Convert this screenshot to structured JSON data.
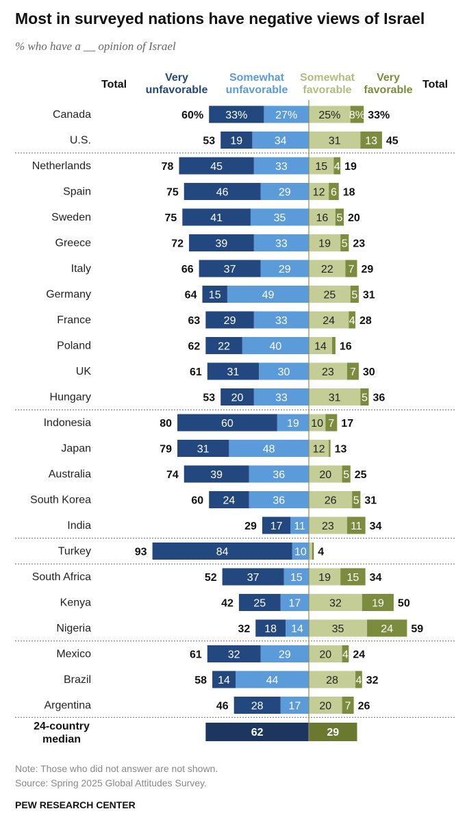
{
  "title": "Most in surveyed nations have negative views of Israel",
  "subtitle": "% who have a __ opinion of Israel",
  "headers": {
    "total_left": "Total",
    "very_unfav": [
      "Very",
      "unfavorable"
    ],
    "somewhat_unfav": [
      "Somewhat",
      "unfavorable"
    ],
    "somewhat_fav": [
      "Somewhat",
      "favorable"
    ],
    "very_fav": [
      "Very",
      "favorable"
    ],
    "total_right": "Total"
  },
  "colors": {
    "very_unfavorable": "#23487f",
    "somewhat_unfavorable": "#5b9bd9",
    "somewhat_favorable": "#c5cd96",
    "very_favorable": "#7b8c3e",
    "median_unfavorable": "#1c3660",
    "median_favorable": "#6a7830",
    "center_line": "#8a8a5a",
    "separator": "#666666"
  },
  "chart_data": {
    "type": "bar",
    "stacked": "diverging",
    "series_names": [
      "Very unfavorable",
      "Somewhat unfavorable",
      "Somewhat favorable",
      "Very favorable"
    ],
    "rows": [
      {
        "country": "Canada",
        "very_unfav": 33,
        "somewhat_unfav": 27,
        "somewhat_fav": 25,
        "very_fav": 8,
        "total_unfav": 60,
        "total_fav": 33,
        "pct": true,
        "group": 1
      },
      {
        "country": "U.S.",
        "very_unfav": 19,
        "somewhat_unfav": 34,
        "somewhat_fav": 31,
        "very_fav": 13,
        "total_unfav": 53,
        "total_fav": 45,
        "group": 1
      },
      {
        "country": "Netherlands",
        "very_unfav": 45,
        "somewhat_unfav": 33,
        "somewhat_fav": 15,
        "very_fav": 4,
        "total_unfav": 78,
        "total_fav": 19,
        "group": 2
      },
      {
        "country": "Spain",
        "very_unfav": 46,
        "somewhat_unfav": 29,
        "somewhat_fav": 12,
        "very_fav": 6,
        "total_unfav": 75,
        "total_fav": 18,
        "group": 2
      },
      {
        "country": "Sweden",
        "very_unfav": 41,
        "somewhat_unfav": 35,
        "somewhat_fav": 16,
        "very_fav": 5,
        "total_unfav": 75,
        "total_fav": 20,
        "group": 2
      },
      {
        "country": "Greece",
        "very_unfav": 39,
        "somewhat_unfav": 33,
        "somewhat_fav": 19,
        "very_fav": 5,
        "total_unfav": 72,
        "total_fav": 23,
        "group": 2
      },
      {
        "country": "Italy",
        "very_unfav": 37,
        "somewhat_unfav": 29,
        "somewhat_fav": 22,
        "very_fav": 7,
        "total_unfav": 66,
        "total_fav": 29,
        "group": 2
      },
      {
        "country": "Germany",
        "very_unfav": 15,
        "somewhat_unfav": 49,
        "somewhat_fav": 25,
        "very_fav": 5,
        "total_unfav": 64,
        "total_fav": 31,
        "group": 2
      },
      {
        "country": "France",
        "very_unfav": 29,
        "somewhat_unfav": 33,
        "somewhat_fav": 24,
        "very_fav": 4,
        "total_unfav": 63,
        "total_fav": 28,
        "group": 2
      },
      {
        "country": "Poland",
        "very_unfav": 22,
        "somewhat_unfav": 40,
        "somewhat_fav": 14,
        "very_fav": 2,
        "total_unfav": 62,
        "total_fav": 16,
        "hide_vf_label": true,
        "group": 2
      },
      {
        "country": "UK",
        "very_unfav": 31,
        "somewhat_unfav": 30,
        "somewhat_fav": 23,
        "very_fav": 7,
        "total_unfav": 61,
        "total_fav": 30,
        "group": 2
      },
      {
        "country": "Hungary",
        "very_unfav": 20,
        "somewhat_unfav": 33,
        "somewhat_fav": 31,
        "very_fav": 5,
        "total_unfav": 53,
        "total_fav": 36,
        "group": 2
      },
      {
        "country": "Indonesia",
        "very_unfav": 60,
        "somewhat_unfav": 19,
        "somewhat_fav": 10,
        "very_fav": 7,
        "total_unfav": 80,
        "total_fav": 17,
        "group": 3
      },
      {
        "country": "Japan",
        "very_unfav": 31,
        "somewhat_unfav": 48,
        "somewhat_fav": 12,
        "very_fav": 1,
        "total_unfav": 79,
        "total_fav": 13,
        "hide_vf_label": true,
        "group": 3
      },
      {
        "country": "Australia",
        "very_unfav": 39,
        "somewhat_unfav": 36,
        "somewhat_fav": 20,
        "very_fav": 5,
        "total_unfav": 74,
        "total_fav": 25,
        "group": 3
      },
      {
        "country": "South Korea",
        "very_unfav": 24,
        "somewhat_unfav": 36,
        "somewhat_fav": 26,
        "very_fav": 5,
        "total_unfav": 60,
        "total_fav": 31,
        "group": 3
      },
      {
        "country": "India",
        "very_unfav": 17,
        "somewhat_unfav": 11,
        "somewhat_fav": 23,
        "very_fav": 11,
        "total_unfav": 29,
        "total_fav": 34,
        "group": 3
      },
      {
        "country": "Turkey",
        "very_unfav": 84,
        "somewhat_unfav": 10,
        "somewhat_fav": 2,
        "very_fav": 1,
        "total_unfav": 93,
        "total_fav": 4,
        "hide_sf_label": true,
        "hide_vf_label": true,
        "group": 4
      },
      {
        "country": "South Africa",
        "very_unfav": 37,
        "somewhat_unfav": 15,
        "somewhat_fav": 19,
        "very_fav": 15,
        "total_unfav": 52,
        "total_fav": 34,
        "group": 5
      },
      {
        "country": "Kenya",
        "very_unfav": 25,
        "somewhat_unfav": 17,
        "somewhat_fav": 32,
        "very_fav": 19,
        "total_unfav": 42,
        "total_fav": 50,
        "group": 5
      },
      {
        "country": "Nigeria",
        "very_unfav": 18,
        "somewhat_unfav": 14,
        "somewhat_fav": 35,
        "very_fav": 24,
        "total_unfav": 32,
        "total_fav": 59,
        "group": 5
      },
      {
        "country": "Mexico",
        "very_unfav": 32,
        "somewhat_unfav": 29,
        "somewhat_fav": 20,
        "very_fav": 4,
        "total_unfav": 61,
        "total_fav": 24,
        "group": 6
      },
      {
        "country": "Brazil",
        "very_unfav": 14,
        "somewhat_unfav": 44,
        "somewhat_fav": 28,
        "very_fav": 4,
        "total_unfav": 58,
        "total_fav": 32,
        "group": 6
      },
      {
        "country": "Argentina",
        "very_unfav": 28,
        "somewhat_unfav": 17,
        "somewhat_fav": 20,
        "very_fav": 7,
        "total_unfav": 46,
        "total_fav": 26,
        "group": 6
      }
    ],
    "median": {
      "label": [
        "24-country",
        "median"
      ],
      "unfavorable": 62,
      "favorable": 29
    }
  },
  "notes": {
    "note": "Note: Those who did not answer are not shown.",
    "source": "Source: Spring 2025 Global Attitudes Survey."
  },
  "footer": "PEW RESEARCH CENTER"
}
